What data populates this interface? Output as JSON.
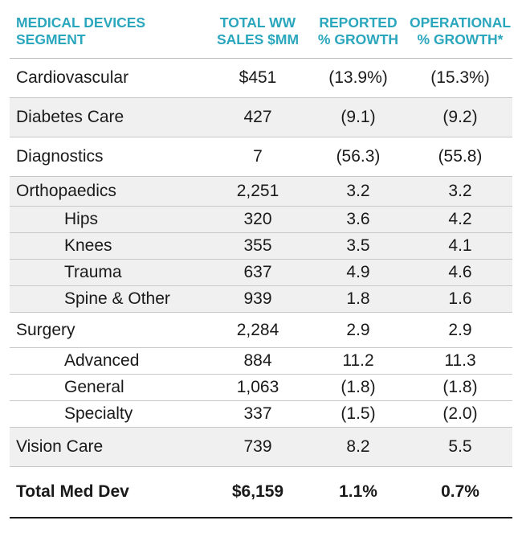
{
  "headers": {
    "segment": [
      "MEDICAL DEVICES",
      "SEGMENT"
    ],
    "sales": [
      "TOTAL WW",
      "SALES $MM"
    ],
    "reported": [
      "REPORTED",
      "% GROWTH"
    ],
    "operational": [
      "OPERATIONAL",
      "% GROWTH*"
    ]
  },
  "rows": [
    {
      "label": "Cardiovascular",
      "sales": "$451",
      "reported": "(13.9%)",
      "operational": "(15.3%)"
    },
    {
      "label": "Diabetes Care",
      "sales": "427",
      "reported": "(9.1)",
      "operational": "(9.2)"
    },
    {
      "label": "Diagnostics",
      "sales": "7",
      "reported": "(56.3)",
      "operational": "(55.8)"
    }
  ],
  "orthopaedics": {
    "label": "Orthopaedics",
    "sales": "2,251",
    "reported": "3.2",
    "operational": "3.2",
    "sub": [
      {
        "label": "Hips",
        "sales": "320",
        "reported": "3.6",
        "operational": "4.2"
      },
      {
        "label": "Knees",
        "sales": "355",
        "reported": "3.5",
        "operational": "4.1"
      },
      {
        "label": "Trauma",
        "sales": "637",
        "reported": "4.9",
        "operational": "4.6"
      },
      {
        "label": "Spine & Other",
        "sales": "939",
        "reported": "1.8",
        "operational": "1.6"
      }
    ]
  },
  "surgery": {
    "label": "Surgery",
    "sales": "2,284",
    "reported": "2.9",
    "operational": "2.9",
    "sub": [
      {
        "label": "Advanced",
        "sales": "884",
        "reported": "11.2",
        "operational": "11.3"
      },
      {
        "label": "General",
        "sales": "1,063",
        "reported": "(1.8)",
        "operational": "(1.8)"
      },
      {
        "label": "Specialty",
        "sales": "337",
        "reported": "(1.5)",
        "operational": "(2.0)"
      }
    ]
  },
  "vision": {
    "label": "Vision Care",
    "sales": "739",
    "reported": "8.2",
    "operational": "5.5"
  },
  "total": {
    "label": "Total Med Dev",
    "sales": "$6,159",
    "reported": "1.1%",
    "operational": "0.7%"
  }
}
